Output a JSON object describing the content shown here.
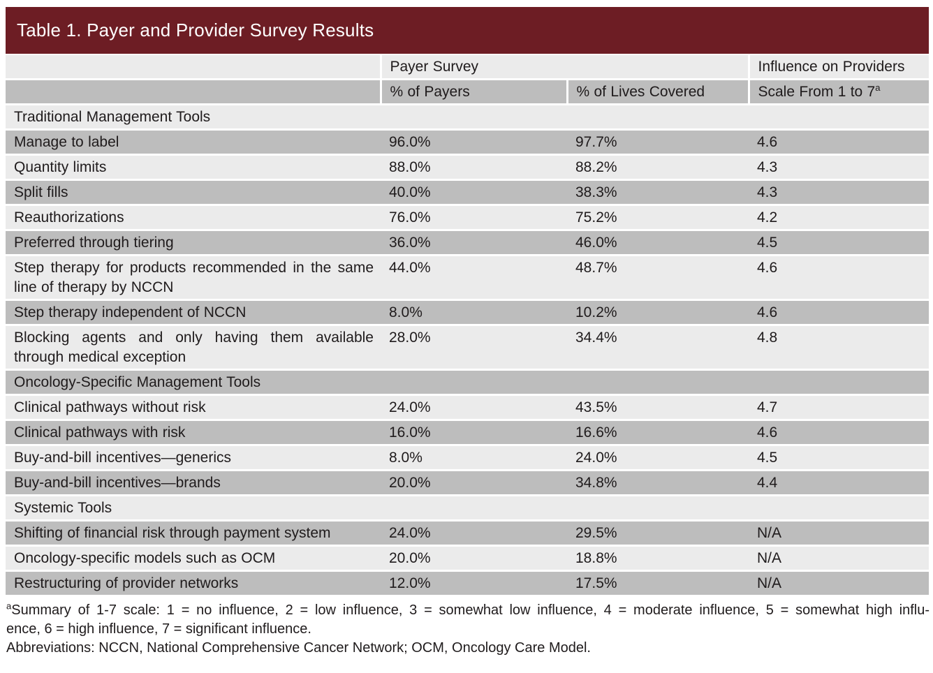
{
  "table": {
    "title": "Table 1. Payer and Provider Survey Results",
    "header": {
      "payer_survey": "Payer Survey",
      "influence": "Influence on Providers",
      "col_payers": "% of Payers",
      "col_lives": "% of Lives Covered",
      "col_scale": "Scale From 1 to 7",
      "col_scale_superscript": "a"
    },
    "sections": [
      {
        "title": "Traditional Management Tools",
        "rows": [
          {
            "tool": "Manage to label",
            "payers": "96.0%",
            "lives": "97.7%",
            "scale": "4.6"
          },
          {
            "tool": "Quantity limits",
            "payers": "88.0%",
            "lives": "88.2%",
            "scale": "4.3"
          },
          {
            "tool": "Split fills",
            "payers": "40.0%",
            "lives": "38.3%",
            "scale": "4.3"
          },
          {
            "tool": "Reauthorizations",
            "payers": "76.0%",
            "lives": "75.2%",
            "scale": "4.2"
          },
          {
            "tool": "Preferred through tiering",
            "payers": "36.0%",
            "lives": "46.0%",
            "scale": "4.5"
          },
          {
            "tool": "Step therapy for products recommended in the same line of therapy by NCCN",
            "payers": "44.0%",
            "lives": "48.7%",
            "scale": "4.6"
          },
          {
            "tool": "Step therapy independent of NCCN",
            "payers": "8.0%",
            "lives": "10.2%",
            "scale": "4.6"
          },
          {
            "tool": "Blocking agents and only having them available through medical exception",
            "payers": "28.0%",
            "lives": "34.4%",
            "scale": "4.8"
          }
        ]
      },
      {
        "title": "Oncology-Specific Management Tools",
        "rows": [
          {
            "tool": "Clinical pathways without risk",
            "payers": "24.0%",
            "lives": "43.5%",
            "scale": "4.7"
          },
          {
            "tool": "Clinical pathways with risk",
            "payers": "16.0%",
            "lives": "16.6%",
            "scale": "4.6"
          },
          {
            "tool": "Buy-and-bill incentives—generics",
            "payers": "8.0%",
            "lives": "24.0%",
            "scale": "4.5"
          },
          {
            "tool": "Buy-and-bill incentives—brands",
            "payers": "20.0%",
            "lives": "34.8%",
            "scale": "4.4"
          }
        ]
      },
      {
        "title": "Systemic Tools",
        "rows": [
          {
            "tool": "Shifting of financial risk through payment system",
            "payers": "24.0%",
            "lives": "29.5%",
            "scale": "N/A"
          },
          {
            "tool": "Oncology-specific models such as OCM",
            "payers": "20.0%",
            "lives": "18.8%",
            "scale": "N/A"
          },
          {
            "tool": "Restructuring of provider networks",
            "payers": "12.0%",
            "lives": "17.5%",
            "scale": "N/A"
          }
        ]
      }
    ]
  },
  "footnotes": {
    "scale_note_superscript": "a",
    "scale_note_line1": "Summary of 1-7 scale: 1 = no influence, 2 = low influence, 3 = somewhat low influence, 4 = moderate influence, 5 = somewhat high influ-",
    "scale_note_line2": "ence, 6 = high influence, 7 = significant influence.",
    "abbreviations": "Abbreviations: NCCN, National Comprehensive Cancer Network; OCM, Oncology Care Model."
  },
  "colors": {
    "header_maroon": "#6d1d24",
    "row_light": "#ebebeb",
    "row_gray": "#bdbdbd",
    "text": "#1f1b1c",
    "title_text": "#ffffff"
  }
}
